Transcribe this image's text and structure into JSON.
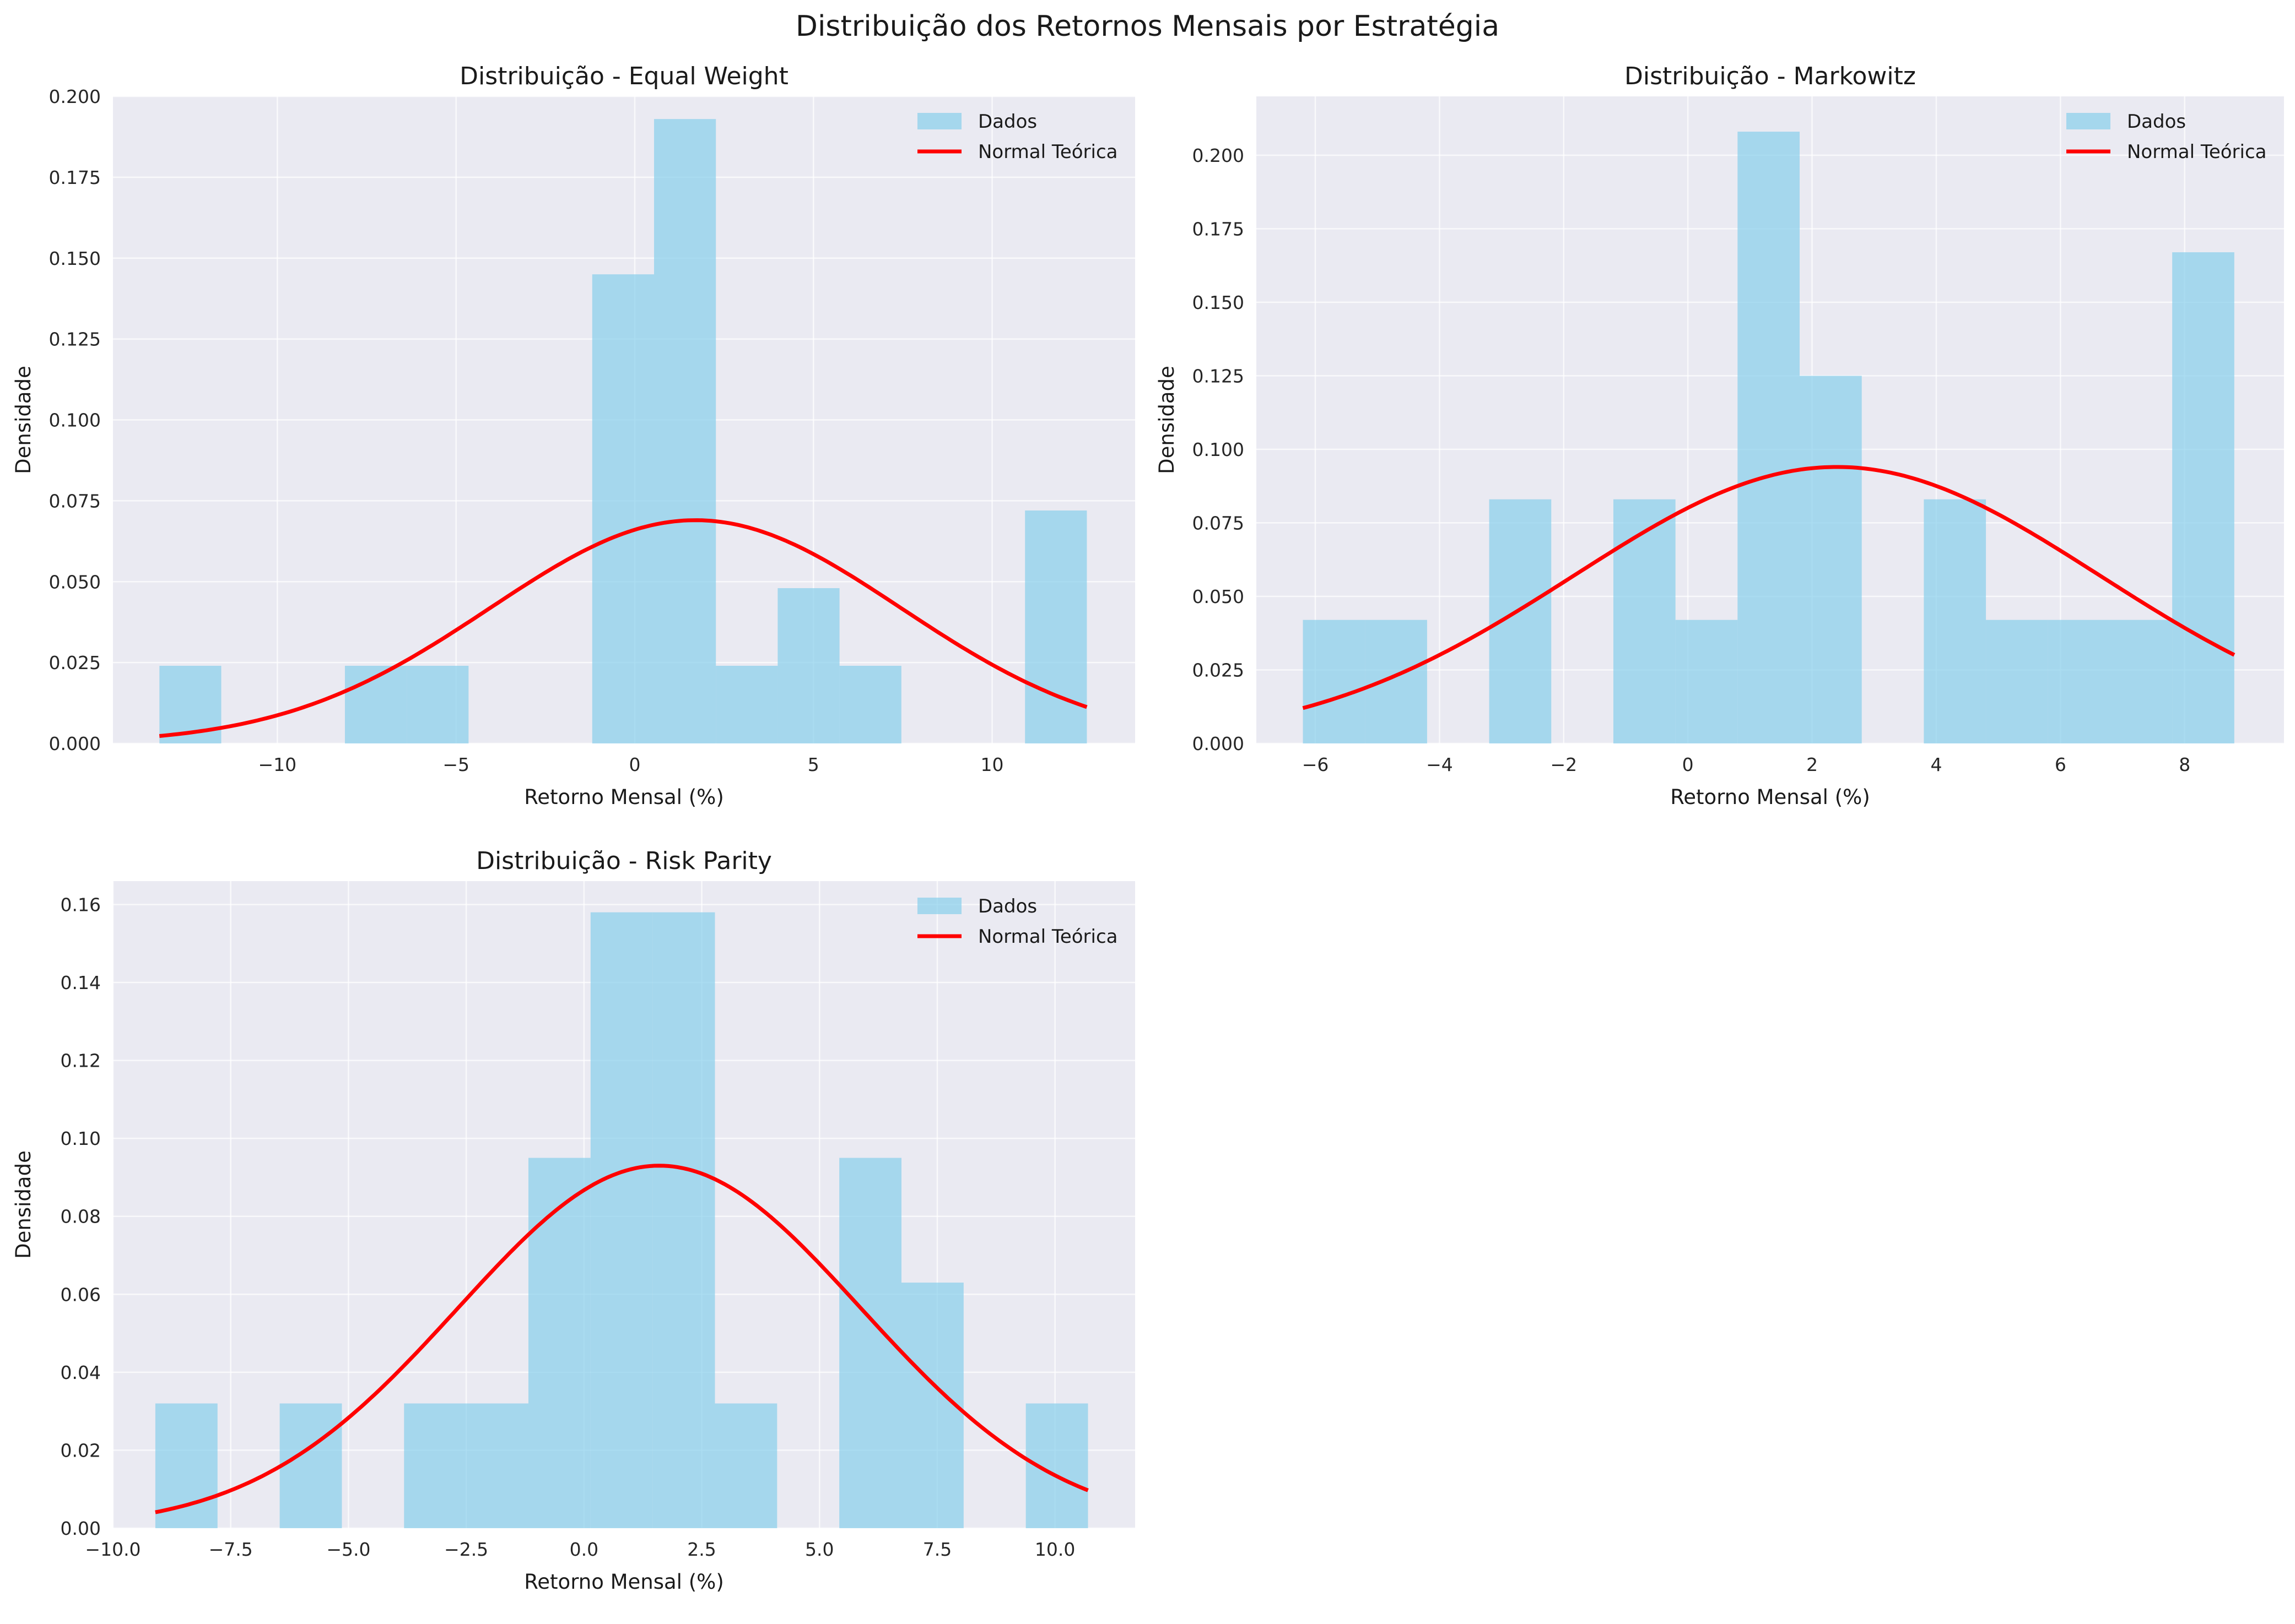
{
  "figure": {
    "title": "Distribuição dos Retornos Mensais por Estratégia"
  },
  "colors": {
    "background": "#eaeaf2",
    "grid": "#ffffff",
    "bars": "#87CEEB",
    "curve": "#ff0000"
  },
  "legend": {
    "hist_label": "Dados",
    "curve_label": "Normal Teórica",
    "placement": "upper right"
  },
  "chart_data": [
    {
      "type": "bar",
      "title": "Distribuição - Equal Weight",
      "xlabel": "Retorno Mensal (%)",
      "ylabel": "Densidade",
      "xlim": [
        -14.6,
        14.0
      ],
      "ylim": [
        0,
        0.2
      ],
      "xticks": [
        -10,
        -5,
        0,
        5,
        10
      ],
      "xtick_labels": [
        "−10",
        "−5",
        "0",
        "5",
        "10"
      ],
      "yticks": [
        0.0,
        0.025,
        0.05,
        0.075,
        0.1,
        0.125,
        0.15,
        0.175,
        0.2
      ],
      "ytick_labels": [
        "0.000",
        "0.025",
        "0.050",
        "0.075",
        "0.100",
        "0.125",
        "0.150",
        "0.175",
        "0.200"
      ],
      "grid": true,
      "bin_edges": [
        -13.3,
        -11.57,
        -9.84,
        -8.11,
        -6.38,
        -4.65,
        -2.92,
        -1.19,
        0.54,
        2.27,
        4.0,
        5.73,
        7.46,
        9.19,
        10.92,
        12.65
      ],
      "density": [
        0.024,
        0.0,
        0.0,
        0.024,
        0.024,
        0.0,
        0.0,
        0.145,
        0.193,
        0.024,
        0.048,
        0.024,
        0.0,
        0.0,
        0.072
      ],
      "normal": {
        "mean": 1.7,
        "std": 5.75,
        "peak": 0.069
      }
    },
    {
      "type": "bar",
      "title": "Distribuição - Markowitz",
      "xlabel": "Retorno Mensal (%)",
      "ylabel": "Densidade",
      "xlim": [
        -6.95,
        9.6
      ],
      "ylim": [
        0,
        0.22
      ],
      "xticks": [
        -6,
        -4,
        -2,
        0,
        2,
        4,
        6,
        8
      ],
      "xtick_labels": [
        "−6",
        "−4",
        "−2",
        "0",
        "2",
        "4",
        "6",
        "8"
      ],
      "yticks": [
        0.0,
        0.025,
        0.05,
        0.075,
        0.1,
        0.125,
        0.15,
        0.175,
        0.2
      ],
      "ytick_labels": [
        "0.000",
        "0.025",
        "0.050",
        "0.075",
        "0.100",
        "0.125",
        "0.150",
        "0.175",
        "0.200"
      ],
      "grid": true,
      "bin_edges": [
        -6.2,
        -5.2,
        -4.2,
        -3.2,
        -2.2,
        -1.2,
        -0.2,
        0.8,
        1.8,
        2.8,
        3.8,
        4.8,
        5.8,
        6.8,
        7.8,
        8.8
      ],
      "density": [
        0.042,
        0.042,
        0.0,
        0.083,
        0.0,
        0.083,
        0.042,
        0.208,
        0.125,
        0.0,
        0.083,
        0.042,
        0.042,
        0.042,
        0.167
      ],
      "normal": {
        "mean": 2.4,
        "std": 4.24,
        "peak": 0.094
      }
    },
    {
      "type": "bar",
      "title": "Distribuição - Risk Parity",
      "xlabel": "Retorno Mensal (%)",
      "ylabel": "Densidade",
      "xlim": [
        -10.0,
        11.7
      ],
      "ylim": [
        0,
        0.166
      ],
      "xticks": [
        -10.0,
        -7.5,
        -5.0,
        -2.5,
        0.0,
        2.5,
        5.0,
        7.5,
        10.0
      ],
      "xtick_labels": [
        "−10.0",
        "−7.5",
        "−5.0",
        "−2.5",
        "0.0",
        "2.5",
        "5.0",
        "7.5",
        "10.0"
      ],
      "yticks": [
        0.0,
        0.02,
        0.04,
        0.06,
        0.08,
        0.1,
        0.12,
        0.14,
        0.16
      ],
      "ytick_labels": [
        "0.00",
        "0.02",
        "0.04",
        "0.06",
        "0.08",
        "0.10",
        "0.12",
        "0.14",
        "0.16"
      ],
      "grid": true,
      "bin_edges": [
        -9.1,
        -7.78,
        -6.46,
        -5.14,
        -3.82,
        -2.5,
        -1.18,
        0.14,
        1.46,
        2.78,
        4.1,
        5.42,
        6.74,
        8.06,
        9.38,
        10.7
      ],
      "density": [
        0.032,
        0.0,
        0.032,
        0.0,
        0.032,
        0.032,
        0.095,
        0.158,
        0.158,
        0.032,
        0.0,
        0.095,
        0.063,
        0.0,
        0.032
      ],
      "normal": {
        "mean": 1.6,
        "std": 4.28,
        "peak": 0.093
      }
    }
  ]
}
